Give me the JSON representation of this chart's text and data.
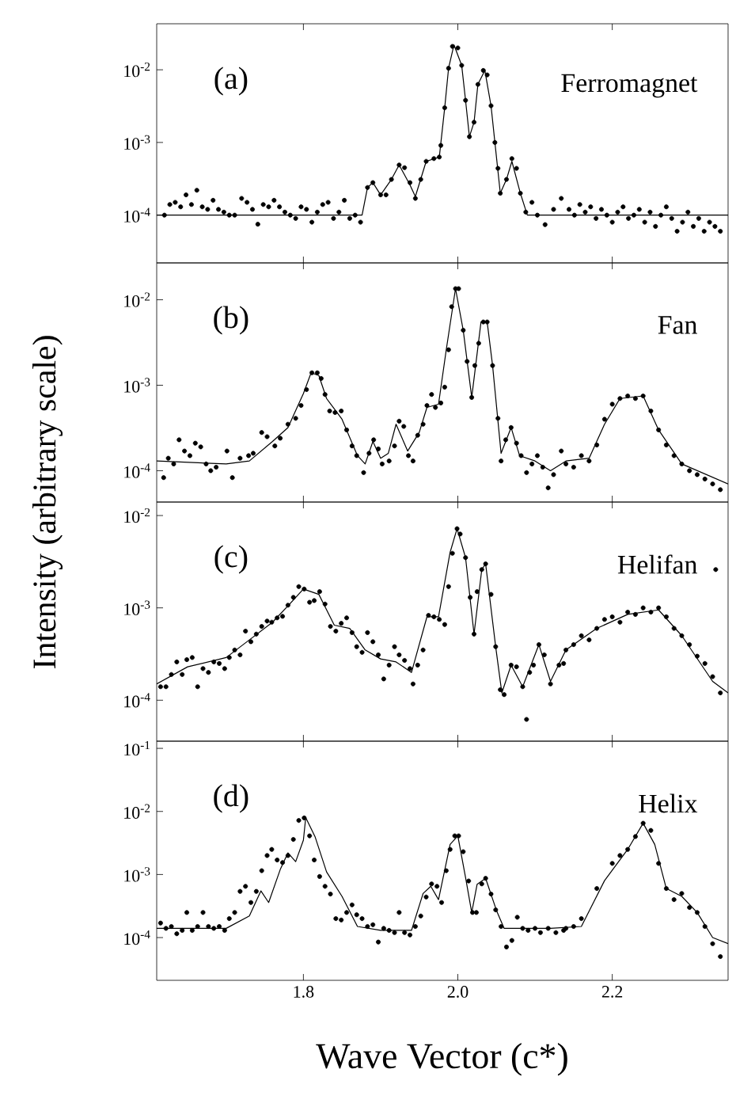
{
  "chart_data": [
    {
      "type": "scatter",
      "annotations": [
        "(a)",
        "Ferromagnet"
      ],
      "xlim": [
        1.61,
        2.35
      ],
      "xticks": [
        1.8,
        2.0,
        2.2
      ],
      "ylim": [
        2.2e-05,
        0.043
      ],
      "yticks": [
        {
          "value": 0.0001,
          "label": "10$^{-4}$"
        },
        {
          "value": 0.001,
          "label": "10$^{-3}$"
        },
        {
          "value": 0.01,
          "label": "10$^{-2}$"
        }
      ],
      "log": "y",
      "tick_labels": "y",
      "series": [
        {
          "marker": "circle",
          "color": "#000000",
          "x": [
            1.62,
            1.627,
            1.634,
            1.641,
            1.648,
            1.655,
            1.662,
            1.669,
            1.676,
            1.683,
            1.69,
            1.697,
            1.704,
            1.711,
            1.72,
            1.727,
            1.734,
            1.741,
            1.748,
            1.755,
            1.762,
            1.769,
            1.776,
            1.783,
            1.79,
            1.797,
            1.804,
            1.811,
            1.818,
            1.825,
            1.832,
            1.839,
            1.846,
            1.853,
            1.86,
            1.867,
            1.874,
            1.883,
            1.89,
            1.9,
            1.907,
            1.914,
            1.924,
            1.931,
            1.938,
            1.945,
            1.952,
            1.959,
            1.969,
            1.976,
            1.978,
            1.983,
            1.988,
            1.993,
            2.0,
            2.005,
            2.01,
            2.015,
            2.021,
            2.026,
            2.033,
            2.038,
            2.043,
            2.048,
            2.052,
            2.055,
            2.063,
            2.07,
            2.076,
            2.081,
            2.088,
            2.096,
            2.103,
            2.113,
            2.124,
            2.134,
            2.144,
            2.151,
            2.158,
            2.165,
            2.172,
            2.179,
            2.186,
            2.193,
            2.2,
            2.207,
            2.214,
            2.221,
            2.228,
            2.235,
            2.242,
            2.249,
            2.256,
            2.263,
            2.27,
            2.277,
            2.284,
            2.291,
            2.298,
            2.305,
            2.312,
            2.319,
            2.326,
            2.333,
            2.34
          ],
          "values": [
            0.0001,
            0.00014,
            0.00015,
            0.00013,
            0.00019,
            0.00014,
            0.00022,
            0.00013,
            0.00012,
            0.00016,
            0.00012,
            0.00011,
            0.0001,
            0.0001,
            0.00017,
            0.00015,
            0.00012,
            7.5e-05,
            0.00014,
            0.00013,
            0.00016,
            0.00013,
            0.00011,
            0.0001,
            9e-05,
            0.00013,
            0.00012,
            8e-05,
            0.00011,
            0.00014,
            0.00015,
            9e-05,
            0.00011,
            0.00016,
            9e-05,
            0.0001,
            8e-05,
            0.00024,
            0.00028,
            0.00019,
            0.00019,
            0.00031,
            0.00049,
            0.00045,
            0.00028,
            0.00017,
            0.00031,
            0.00055,
            0.0006,
            0.00063,
            0.00091,
            0.003,
            0.0105,
            0.021,
            0.02,
            0.0115,
            0.0038,
            0.0012,
            0.0019,
            0.0063,
            0.0098,
            0.0085,
            0.0032,
            0.001,
            0.00044,
            0.0002,
            0.00031,
            0.0006,
            0.00044,
            0.0002,
            0.00011,
            0.00015,
            0.0001,
            7.4e-05,
            0.00012,
            0.00017,
            0.00012,
            0.0001,
            0.00014,
            0.00011,
            0.00013,
            9e-05,
            0.00012,
            0.0001,
            8e-05,
            0.00011,
            0.00013,
            9e-05,
            0.0001,
            0.00012,
            8e-05,
            0.00011,
            7e-05,
            0.0001,
            0.00013,
            9e-05,
            6e-05,
            8e-05,
            0.00011,
            7e-05,
            9e-05,
            6e-05,
            8e-05,
            7e-05,
            6e-05
          ]
        },
        {
          "type": "line",
          "marker": "none",
          "color": "#000000",
          "x": [
            1.61,
            1.876,
            1.883,
            1.89,
            1.9,
            1.914,
            1.924,
            1.938,
            1.945,
            1.959,
            1.976,
            1.983,
            1.988,
            1.995,
            2.005,
            2.01,
            2.015,
            2.021,
            2.026,
            2.035,
            2.043,
            2.048,
            2.055,
            2.063,
            2.07,
            2.081,
            2.09,
            2.35
          ],
          "values": [
            0.0001,
            0.0001,
            0.00024,
            0.00028,
            0.00019,
            0.00031,
            0.00049,
            0.00026,
            0.00018,
            0.00055,
            0.00063,
            0.003,
            0.0105,
            0.022,
            0.0115,
            0.0038,
            0.0012,
            0.0019,
            0.0063,
            0.0098,
            0.0032,
            0.001,
            0.0002,
            0.00031,
            0.00055,
            0.0002,
            0.0001,
            0.0001
          ]
        }
      ]
    },
    {
      "type": "scatter",
      "annotations": [
        "(b)",
        "Fan"
      ],
      "ylabel": "Intensity (arbitrary scale)",
      "xlim": [
        1.61,
        2.35
      ],
      "xticks": [
        1.8,
        2.0,
        2.2
      ],
      "ylim": [
        4.3e-05,
        0.027
      ],
      "yticks": [
        {
          "value": 0.0001,
          "label": "10$^{-4}$"
        },
        {
          "value": 0.001,
          "label": "10$^{-3}$"
        },
        {
          "value": 0.01,
          "label": "10$^{-2}$"
        }
      ],
      "log": "y",
      "tick_labels": "y",
      "series": [
        {
          "marker": "circle",
          "color": "#000000",
          "x": [
            1.619,
            1.625,
            1.632,
            1.639,
            1.646,
            1.653,
            1.66,
            1.667,
            1.674,
            1.68,
            1.687,
            1.701,
            1.708,
            1.718,
            1.729,
            1.735,
            1.746,
            1.753,
            1.763,
            1.77,
            1.78,
            1.79,
            1.797,
            1.804,
            1.811,
            1.818,
            1.823,
            1.828,
            1.834,
            1.841,
            1.849,
            1.856,
            1.863,
            1.869,
            1.878,
            1.885,
            1.891,
            1.897,
            1.902,
            1.911,
            1.918,
            1.924,
            1.93,
            1.936,
            1.942,
            1.948,
            1.955,
            1.96,
            1.966,
            1.971,
            1.978,
            1.983,
            1.988,
            1.992,
            1.997,
            2.001,
            2.007,
            2.012,
            2.018,
            2.022,
            2.027,
            2.033,
            2.038,
            2.045,
            2.052,
            2.056,
            2.062,
            2.069,
            2.076,
            2.082,
            2.089,
            2.096,
            2.103,
            2.11,
            2.117,
            2.124,
            2.134,
            2.14,
            2.15,
            2.16,
            2.17,
            2.18,
            2.19,
            2.2,
            2.21,
            2.22,
            2.23,
            2.24,
            2.25,
            2.26,
            2.27,
            2.28,
            2.29,
            2.3,
            2.31,
            2.32,
            2.33,
            2.34
          ],
          "values": [
            8.3e-05,
            0.00014,
            0.00012,
            0.00023,
            0.00017,
            0.00015,
            0.00021,
            0.00019,
            0.00012,
            0.0001,
            0.00011,
            0.00017,
            8.3e-05,
            0.00014,
            0.00015,
            0.00016,
            0.00028,
            0.00025,
            0.000195,
            0.00024,
            0.00035,
            0.00041,
            0.00058,
            0.00089,
            0.0014,
            0.0014,
            0.0012,
            0.00078,
            0.0005,
            0.00048,
            0.0005,
            0.0003,
            0.000195,
            0.00015,
            9.5e-05,
            0.00016,
            0.00023,
            0.00018,
            0.00012,
            0.00013,
            0.000195,
            0.00038,
            0.00033,
            0.00015,
            0.00013,
            0.00026,
            0.00035,
            0.00058,
            0.00078,
            0.00055,
            0.00062,
            0.00095,
            0.0026,
            0.0083,
            0.0135,
            0.0135,
            0.0044,
            0.0019,
            0.00072,
            0.0017,
            0.0031,
            0.0055,
            0.0055,
            0.0017,
            0.00041,
            0.00013,
            0.00023,
            0.00032,
            0.00021,
            0.00015,
            9.5e-05,
            0.00012,
            0.00015,
            0.00011,
            6.3e-05,
            9e-05,
            0.00017,
            0.00012,
            0.00011,
            0.00015,
            0.00013,
            0.0002,
            0.0004,
            0.0006,
            0.0007,
            0.00075,
            0.0007,
            0.00075,
            0.0005,
            0.0003,
            0.0002,
            0.00015,
            0.00012,
            0.0001,
            9e-05,
            8e-05,
            7e-05,
            6e-05
          ]
        },
        {
          "type": "line",
          "marker": "none",
          "color": "#000000",
          "x": [
            1.61,
            1.7,
            1.73,
            1.76,
            1.78,
            1.8,
            1.81,
            1.82,
            1.83,
            1.85,
            1.87,
            1.88,
            1.89,
            1.9,
            1.91,
            1.92,
            1.935,
            1.95,
            1.96,
            1.975,
            1.985,
            1.997,
            2.007,
            2.018,
            2.03,
            2.038,
            2.045,
            2.056,
            2.069,
            2.08,
            2.1,
            2.12,
            2.14,
            2.17,
            2.19,
            2.21,
            2.24,
            2.26,
            2.29,
            2.35
          ],
          "values": [
            0.00013,
            0.00012,
            0.00013,
            0.00022,
            0.00032,
            0.0008,
            0.0014,
            0.0013,
            0.0007,
            0.0004,
            0.00015,
            0.00012,
            0.00022,
            0.00014,
            0.00016,
            0.00035,
            0.00017,
            0.00028,
            0.00055,
            0.0006,
            0.0026,
            0.0135,
            0.0044,
            0.00072,
            0.0055,
            0.0055,
            0.0017,
            0.00016,
            0.00032,
            0.00015,
            0.00013,
            0.0001,
            0.00013,
            0.00014,
            0.00035,
            0.0007,
            0.00075,
            0.0003,
            0.00012,
            7e-05
          ]
        }
      ]
    },
    {
      "type": "scatter",
      "annotations": [
        "(c)",
        "Helifan"
      ],
      "xlim": [
        1.61,
        2.35
      ],
      "xticks": [
        1.8,
        2.0,
        2.2
      ],
      "ylim": [
        3.6e-05,
        0.014
      ],
      "yticks": [
        {
          "value": 0.0001,
          "label": "10$^{-4}$"
        },
        {
          "value": 0.001,
          "label": "10$^{-3}$"
        },
        {
          "value": 0.01,
          "label": "10$^{-2}$"
        }
      ],
      "log": "y",
      "tick_labels": "y",
      "series": [
        {
          "marker": "circle",
          "color": "#000000",
          "x": [
            1.615,
            1.622,
            1.629,
            1.636,
            1.643,
            1.649,
            1.656,
            1.663,
            1.67,
            1.677,
            1.684,
            1.691,
            1.698,
            1.704,
            1.711,
            1.718,
            1.725,
            1.732,
            1.739,
            1.746,
            1.753,
            1.759,
            1.766,
            1.773,
            1.78,
            1.787,
            1.794,
            1.801,
            1.808,
            1.814,
            1.821,
            1.828,
            1.835,
            1.842,
            1.849,
            1.856,
            1.863,
            1.869,
            1.876,
            1.883,
            1.89,
            1.897,
            1.904,
            1.911,
            1.918,
            1.924,
            1.931,
            1.938,
            1.942,
            1.948,
            1.955,
            1.962,
            1.969,
            1.976,
            1.983,
            1.988,
            1.993,
            1.999,
            2.003,
            2.01,
            2.016,
            2.021,
            2.025,
            2.031,
            2.036,
            2.043,
            2.049,
            2.055,
            2.06,
            2.069,
            2.076,
            2.084,
            2.089,
            2.093,
            2.098,
            2.105,
            2.112,
            2.12,
            2.131,
            2.137,
            2.14,
            2.15,
            2.16,
            2.17,
            2.18,
            2.19,
            2.2,
            2.21,
            2.22,
            2.23,
            2.24,
            2.25,
            2.26,
            2.27,
            2.28,
            2.29,
            2.3,
            2.31,
            2.32,
            2.33,
            2.334,
            2.34
          ],
          "values": [
            0.00014,
            0.00014,
            0.00019,
            0.00026,
            0.00019,
            0.000275,
            0.00029,
            0.00014,
            0.00022,
            0.0002,
            0.00026,
            0.00025,
            0.00022,
            0.00029,
            0.00035,
            0.00031,
            0.00056,
            0.00043,
            0.00052,
            0.00063,
            0.00072,
            0.0007,
            0.00078,
            0.00081,
            0.00107,
            0.0013,
            0.0017,
            0.0016,
            0.00115,
            0.0012,
            0.0015,
            0.0011,
            0.00063,
            0.00056,
            0.00068,
            0.00078,
            0.00054,
            0.00038,
            0.00033,
            0.00054,
            0.00043,
            0.00031,
            0.00017,
            0.00024,
            0.00038,
            0.00031,
            0.00027,
            0.00022,
            0.00015,
            0.00024,
            0.00035,
            0.00083,
            0.0008,
            0.00075,
            0.00066,
            0.0017,
            0.0039,
            0.0072,
            0.0063,
            0.0035,
            0.0013,
            0.00052,
            0.0015,
            0.0026,
            0.003,
            0.0014,
            0.00038,
            0.00013,
            0.000115,
            0.00024,
            0.00023,
            0.00014,
            6.2e-05,
            0.0002,
            0.00024,
            0.0004,
            0.00031,
            0.00015,
            0.00024,
            0.00025,
            0.00035,
            0.0004,
            0.0005,
            0.00045,
            0.0006,
            0.00075,
            0.0008,
            0.0007,
            0.0009,
            0.00085,
            0.001,
            0.0009,
            0.001,
            0.0008,
            0.0006,
            0.0005,
            0.0004,
            0.0003,
            0.00025,
            0.00018,
            0.0026,
            0.00012
          ]
        },
        {
          "type": "line",
          "marker": "none",
          "color": "#000000",
          "x": [
            1.61,
            1.65,
            1.7,
            1.73,
            1.76,
            1.78,
            1.8,
            1.82,
            1.84,
            1.86,
            1.88,
            1.9,
            1.92,
            1.94,
            1.96,
            1.975,
            1.99,
            1.999,
            2.01,
            2.021,
            2.031,
            2.036,
            2.049,
            2.057,
            2.069,
            2.084,
            2.105,
            2.12,
            2.14,
            2.18,
            2.22,
            2.26,
            2.29,
            2.33,
            2.35
          ],
          "values": [
            0.00015,
            0.00023,
            0.00029,
            0.00045,
            0.0007,
            0.00105,
            0.0016,
            0.0014,
            0.00065,
            0.0006,
            0.00035,
            0.00028,
            0.00026,
            0.0002,
            0.0008,
            0.0008,
            0.004,
            0.0072,
            0.0035,
            0.00052,
            0.0026,
            0.003,
            0.00038,
            0.00012,
            0.00024,
            0.00014,
            0.0004,
            0.00016,
            0.00035,
            0.0006,
            0.00085,
            0.00095,
            0.0005,
            0.00016,
            0.00012
          ]
        }
      ]
    },
    {
      "type": "scatter",
      "annotations": [
        "(d)",
        "Helix"
      ],
      "xlabel": "Wave Vector (c*)",
      "xlim": [
        1.61,
        2.35
      ],
      "xticks": [
        {
          "value": 1.8,
          "label": "1.8"
        },
        {
          "value": 2.0,
          "label": "2.0"
        },
        {
          "value": 2.2,
          "label": "2.2"
        }
      ],
      "ylim": [
        2.1e-05,
        0.13
      ],
      "yticks": [
        {
          "value": 0.0001,
          "label": "10$^{-4}$"
        },
        {
          "value": 0.001,
          "label": "10$^{-3}$"
        },
        {
          "value": 0.01,
          "label": "10$^{-2}$"
        },
        {
          "value": 0.1,
          "label": "10$^{-1}$"
        }
      ],
      "log": "y",
      "series": [
        {
          "marker": "circle",
          "color": "#000000",
          "x": [
            1.615,
            1.622,
            1.629,
            1.636,
            1.643,
            1.649,
            1.656,
            1.663,
            1.67,
            1.677,
            1.684,
            1.691,
            1.698,
            1.704,
            1.711,
            1.718,
            1.725,
            1.732,
            1.739,
            1.746,
            1.753,
            1.759,
            1.766,
            1.773,
            1.78,
            1.787,
            1.794,
            1.801,
            1.808,
            1.814,
            1.821,
            1.828,
            1.835,
            1.842,
            1.849,
            1.856,
            1.863,
            1.869,
            1.876,
            1.883,
            1.89,
            1.897,
            1.904,
            1.911,
            1.918,
            1.924,
            1.931,
            1.938,
            1.945,
            1.952,
            1.959,
            1.966,
            1.973,
            1.979,
            1.985,
            1.99,
            1.996,
            2.001,
            2.007,
            2.014,
            2.019,
            2.024,
            2.031,
            2.036,
            2.043,
            2.049,
            2.056,
            2.063,
            2.07,
            2.077,
            2.084,
            2.091,
            2.1,
            2.107,
            2.117,
            2.127,
            2.137,
            2.14,
            2.15,
            2.16,
            2.18,
            2.2,
            2.21,
            2.22,
            2.23,
            2.24,
            2.25,
            2.26,
            2.27,
            2.28,
            2.29,
            2.3,
            2.31,
            2.32,
            2.33,
            2.34
          ],
          "values": [
            0.00017,
            0.00014,
            0.00015,
            0.000115,
            0.00013,
            0.00025,
            0.00013,
            0.00015,
            0.00025,
            0.00015,
            0.00014,
            0.00015,
            0.00013,
            0.0002,
            0.00025,
            0.00054,
            0.00065,
            0.00036,
            0.00054,
            0.00115,
            0.002,
            0.0025,
            0.0017,
            0.00155,
            0.002,
            0.0036,
            0.0072,
            0.0079,
            0.0041,
            0.0017,
            0.00093,
            0.00065,
            0.00049,
            0.0002,
            0.00019,
            0.00025,
            0.00033,
            0.00023,
            0.0002,
            0.00015,
            0.00016,
            8.5e-05,
            0.00014,
            0.00013,
            0.00012,
            0.00025,
            0.00012,
            0.00011,
            0.00015,
            0.00022,
            0.00044,
            0.00071,
            0.00065,
            0.00036,
            0.00115,
            0.0025,
            0.0041,
            0.0041,
            0.0023,
            0.00079,
            0.00025,
            0.00025,
            0.00071,
            0.00087,
            0.00049,
            0.000275,
            0.00015,
            7.1e-05,
            9e-05,
            0.00021,
            0.00014,
            0.00013,
            0.00014,
            0.00012,
            0.00014,
            0.00012,
            0.00013,
            0.00014,
            0.00015,
            0.0002,
            0.0006,
            0.0015,
            0.002,
            0.0025,
            0.004,
            0.0065,
            0.005,
            0.0015,
            0.0006,
            0.0004,
            0.0005,
            0.0003,
            0.00025,
            0.00015,
            8e-05,
            5e-05
          ]
        },
        {
          "type": "line",
          "marker": "none",
          "color": "#000000",
          "x": [
            1.61,
            1.7,
            1.73,
            1.745,
            1.755,
            1.77,
            1.78,
            1.79,
            1.8,
            1.803,
            1.815,
            1.83,
            1.85,
            1.87,
            1.9,
            1.94,
            1.955,
            1.965,
            1.975,
            1.99,
            2.0,
            2.01,
            2.018,
            2.025,
            2.036,
            2.05,
            2.06,
            2.12,
            2.16,
            2.19,
            2.22,
            2.24,
            2.255,
            2.27,
            2.29,
            2.31,
            2.33,
            2.35
          ],
          "values": [
            0.00014,
            0.00014,
            0.00022,
            0.00055,
            0.00036,
            0.0012,
            0.0022,
            0.0016,
            0.0035,
            0.008,
            0.004,
            0.0011,
            0.00045,
            0.00015,
            0.00013,
            0.00013,
            0.0005,
            0.00065,
            0.0004,
            0.003,
            0.0041,
            0.0009,
            0.00025,
            0.0007,
            0.00087,
            0.00027,
            0.00014,
            0.00014,
            0.00015,
            0.0008,
            0.0025,
            0.0065,
            0.003,
            0.0006,
            0.00045,
            0.00025,
            0.0001,
            8e-05
          ]
        }
      ]
    }
  ]
}
